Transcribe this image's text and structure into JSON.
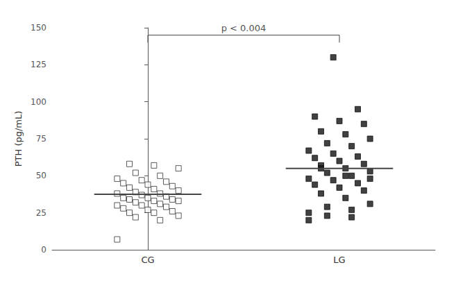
{
  "chart_data": {
    "type": "scatter",
    "categories": [
      "CG",
      "LG"
    ],
    "values": [
      [
        7,
        20,
        22,
        23,
        25,
        25,
        26,
        27,
        28,
        29,
        30,
        30,
        31,
        32,
        33,
        33,
        34,
        34,
        35,
        35,
        36,
        37,
        38,
        38,
        39,
        40,
        41,
        42,
        43,
        44,
        45,
        46,
        47,
        48,
        50,
        52,
        55,
        57,
        58
      ],
      [
        25,
        27,
        29,
        31,
        35,
        38,
        40,
        42,
        44,
        45,
        47,
        48,
        50,
        52,
        53,
        55,
        57,
        58,
        60,
        62,
        63,
        65,
        67,
        70,
        72,
        75,
        78,
        80,
        85,
        87,
        90,
        95,
        130,
        20,
        22,
        23,
        48,
        50,
        55
      ]
    ],
    "colors": [
      "#333333",
      "#111111"
    ],
    "markers": [
      "open_square",
      "square"
    ],
    "means": {
      "values": [
        37.5,
        55.0
      ],
      "color": "#444444"
    },
    "annotation": {
      "text": "p < 0.004",
      "y": 145,
      "drop": 5,
      "color": "#444444"
    },
    "ylabel": "PTH (pg/mL)",
    "ylim": [
      0,
      150
    ],
    "yticks": [
      0,
      25,
      50,
      75,
      100,
      125,
      150
    ],
    "grid": false
  }
}
